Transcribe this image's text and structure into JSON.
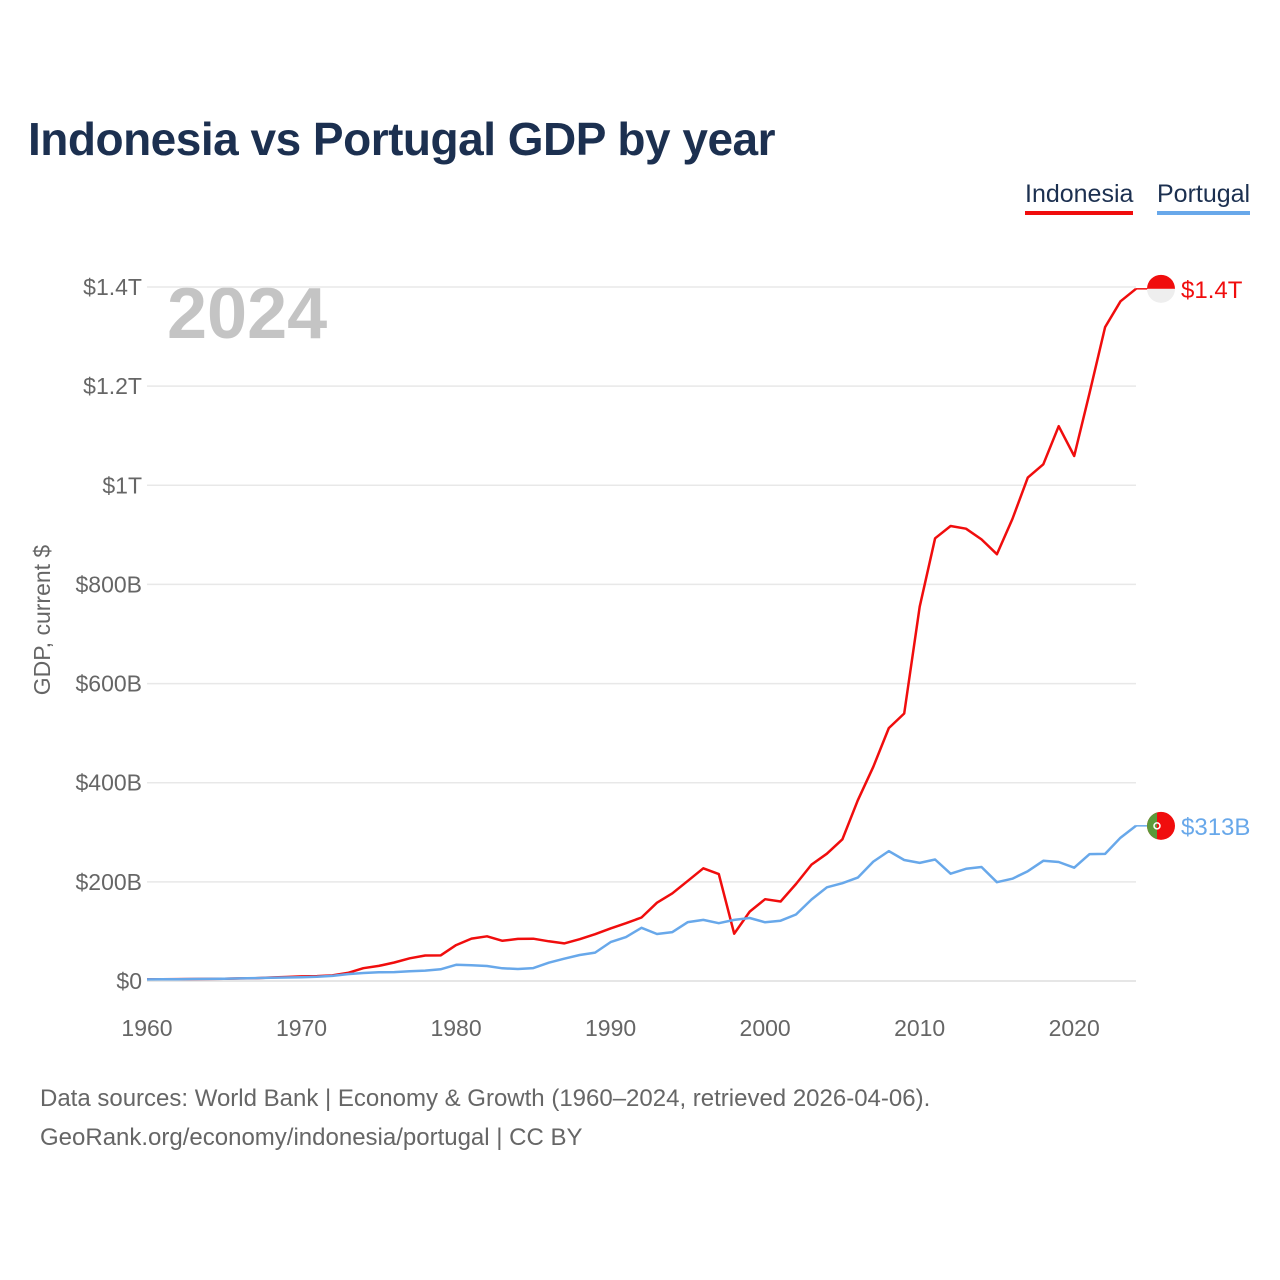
{
  "chart_data": {
    "type": "line",
    "title": "Indonesia vs Portugal GDP by year",
    "ylabel": "GDP, current $",
    "xlabel": "",
    "year_watermark": "2024",
    "xlim": [
      1960,
      2024
    ],
    "ylim": [
      0,
      1400
    ],
    "y_unit": "billion USD",
    "x_ticks": [
      "1960",
      "1970",
      "1980",
      "1990",
      "2000",
      "2010",
      "2020"
    ],
    "y_ticks": [
      {
        "v": 0,
        "label": "$0"
      },
      {
        "v": 200,
        "label": "$200B"
      },
      {
        "v": 400,
        "label": "$400B"
      },
      {
        "v": 600,
        "label": "$600B"
      },
      {
        "v": 800,
        "label": "$800B"
      },
      {
        "v": 1000,
        "label": "$1T"
      },
      {
        "v": 1200,
        "label": "$1.2T"
      },
      {
        "v": 1400,
        "label": "$1.4T"
      }
    ],
    "grid": true,
    "legend_placement": "top-right",
    "series": [
      {
        "name": "Indonesia",
        "color": "#f00d0d",
        "end_label": "$1.4T",
        "values": [
          3.5,
          3.6,
          3.8,
          4.0,
          4.3,
          4.7,
          5.2,
          5.7,
          7.1,
          8.0,
          9.2,
          9.9,
          11.2,
          16.3,
          25.8,
          30.5,
          37.3,
          45.8,
          51.5,
          51.7,
          72.5,
          85.5,
          90.2,
          81.1,
          85.0,
          85.3,
          80.1,
          75.9,
          84.3,
          94.5,
          106.1,
          116.6,
          128.0,
          158.0,
          176.9,
          202.1,
          227.4,
          215.7,
          95.4,
          140.0,
          165.0,
          160.4,
          195.7,
          234.8,
          256.8,
          285.9,
          364.6,
          432.2,
          510.2,
          539.6,
          755.1,
          893.0,
          917.9,
          912.5,
          890.8,
          860.9,
          931.9,
          1015.6,
          1042.3,
          1119.1,
          1059.1,
          1186.5,
          1319.1,
          1371.2,
          1396.3
        ]
      },
      {
        "name": "Portugal",
        "color": "#68a8ea",
        "end_label": "$313B",
        "values": [
          3.2,
          3.4,
          3.7,
          4.0,
          4.3,
          4.7,
          5.2,
          5.8,
          6.4,
          7.0,
          7.6,
          8.5,
          10.2,
          13.9,
          16.2,
          17.5,
          18.0,
          19.7,
          21.0,
          23.7,
          32.6,
          31.8,
          30.3,
          25.7,
          24.2,
          26.0,
          37.0,
          45.0,
          52.4,
          57.2,
          78.4,
          88.6,
          107.3,
          94.9,
          98.7,
          118.9,
          123.2,
          116.6,
          123.3,
          127.0,
          118.4,
          121.6,
          134.2,
          164.5,
          189.0,
          197.3,
          208.5,
          240.9,
          262.0,
          244.0,
          238.3,
          245.1,
          216.4,
          226.4,
          229.9,
          199.4,
          206.4,
          221.4,
          242.4,
          240.0,
          228.5,
          255.9,
          256.4,
          289.1,
          313.0
        ]
      }
    ]
  },
  "footer": {
    "line1": "Data sources: World Bank | Economy & Growth (1960–2024, retrieved 2026-04-06).",
    "line2": "GeoRank.org/economy/indonesia/portugal | CC BY"
  }
}
